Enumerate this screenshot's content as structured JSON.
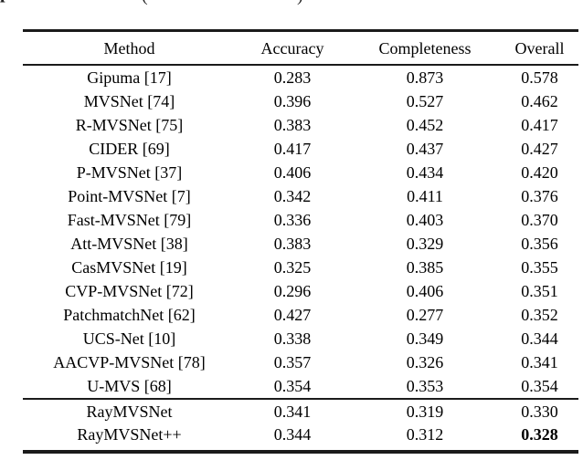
{
  "caption_fragments": {
    "left_glyph": "p",
    "open_paren": "(",
    "close_paren": ")"
  },
  "table": {
    "columns": [
      "Method",
      "Accuracy",
      "Completeness",
      "Overall"
    ],
    "rows": [
      {
        "method": "Gipuma [17]",
        "accuracy": "0.283",
        "completeness": "0.873",
        "overall": "0.578"
      },
      {
        "method": "MVSNet [74]",
        "accuracy": "0.396",
        "completeness": "0.527",
        "overall": "0.462"
      },
      {
        "method": "R-MVSNet [75]",
        "accuracy": "0.383",
        "completeness": "0.452",
        "overall": "0.417"
      },
      {
        "method": "CIDER [69]",
        "accuracy": "0.417",
        "completeness": "0.437",
        "overall": "0.427"
      },
      {
        "method": "P-MVSNet [37]",
        "accuracy": "0.406",
        "completeness": "0.434",
        "overall": "0.420"
      },
      {
        "method": "Point-MVSNet [7]",
        "accuracy": "0.342",
        "completeness": "0.411",
        "overall": "0.376"
      },
      {
        "method": "Fast-MVSNet [79]",
        "accuracy": "0.336",
        "completeness": "0.403",
        "overall": "0.370"
      },
      {
        "method": "Att-MVSNet [38]",
        "accuracy": "0.383",
        "completeness": "0.329",
        "overall": "0.356"
      },
      {
        "method": "CasMVSNet [19]",
        "accuracy": "0.325",
        "completeness": "0.385",
        "overall": "0.355"
      },
      {
        "method": "CVP-MVSNet [72]",
        "accuracy": "0.296",
        "completeness": "0.406",
        "overall": "0.351"
      },
      {
        "method": "PatchmatchNet [62]",
        "accuracy": "0.427",
        "completeness": "0.277",
        "overall": "0.352"
      },
      {
        "method": "UCS-Net [10]",
        "accuracy": "0.338",
        "completeness": "0.349",
        "overall": "0.344"
      },
      {
        "method": "AACVP-MVSNet [78]",
        "accuracy": "0.357",
        "completeness": "0.326",
        "overall": "0.341"
      },
      {
        "method": "U-MVS [68]",
        "accuracy": "0.354",
        "completeness": "0.353",
        "overall": "0.354"
      }
    ],
    "footer_rows": [
      {
        "method": "RayMVSNet",
        "accuracy": "0.341",
        "completeness": "0.319",
        "overall": "0.330"
      },
      {
        "method": "RayMVSNet++",
        "accuracy": "0.344",
        "completeness": "0.312",
        "overall": "0.328"
      }
    ]
  },
  "chart_data": {
    "type": "table",
    "title": "",
    "columns": [
      "Method",
      "Accuracy",
      "Completeness",
      "Overall"
    ],
    "rows": [
      [
        "Gipuma [17]",
        0.283,
        0.873,
        0.578
      ],
      [
        "MVSNet [74]",
        0.396,
        0.527,
        0.462
      ],
      [
        "R-MVSNet [75]",
        0.383,
        0.452,
        0.417
      ],
      [
        "CIDER [69]",
        0.417,
        0.437,
        0.427
      ],
      [
        "P-MVSNet [37]",
        0.406,
        0.434,
        0.42
      ],
      [
        "Point-MVSNet [7]",
        0.342,
        0.411,
        0.376
      ],
      [
        "Fast-MVSNet [79]",
        0.336,
        0.403,
        0.37
      ],
      [
        "Att-MVSNet [38]",
        0.383,
        0.329,
        0.356
      ],
      [
        "CasMVSNet [19]",
        0.325,
        0.385,
        0.355
      ],
      [
        "CVP-MVSNet [72]",
        0.296,
        0.406,
        0.351
      ],
      [
        "PatchmatchNet [62]",
        0.427,
        0.277,
        0.352
      ],
      [
        "UCS-Net [10]",
        0.338,
        0.349,
        0.344
      ],
      [
        "AACVP-MVSNet [78]",
        0.357,
        0.326,
        0.341
      ],
      [
        "U-MVS [68]",
        0.354,
        0.353,
        0.354
      ],
      [
        "RayMVSNet",
        0.341,
        0.319,
        0.33
      ],
      [
        "RayMVSNet++",
        0.344,
        0.312,
        0.328
      ]
    ],
    "notes": "Overall value 0.328 for RayMVSNet++ is bold (best result)."
  }
}
